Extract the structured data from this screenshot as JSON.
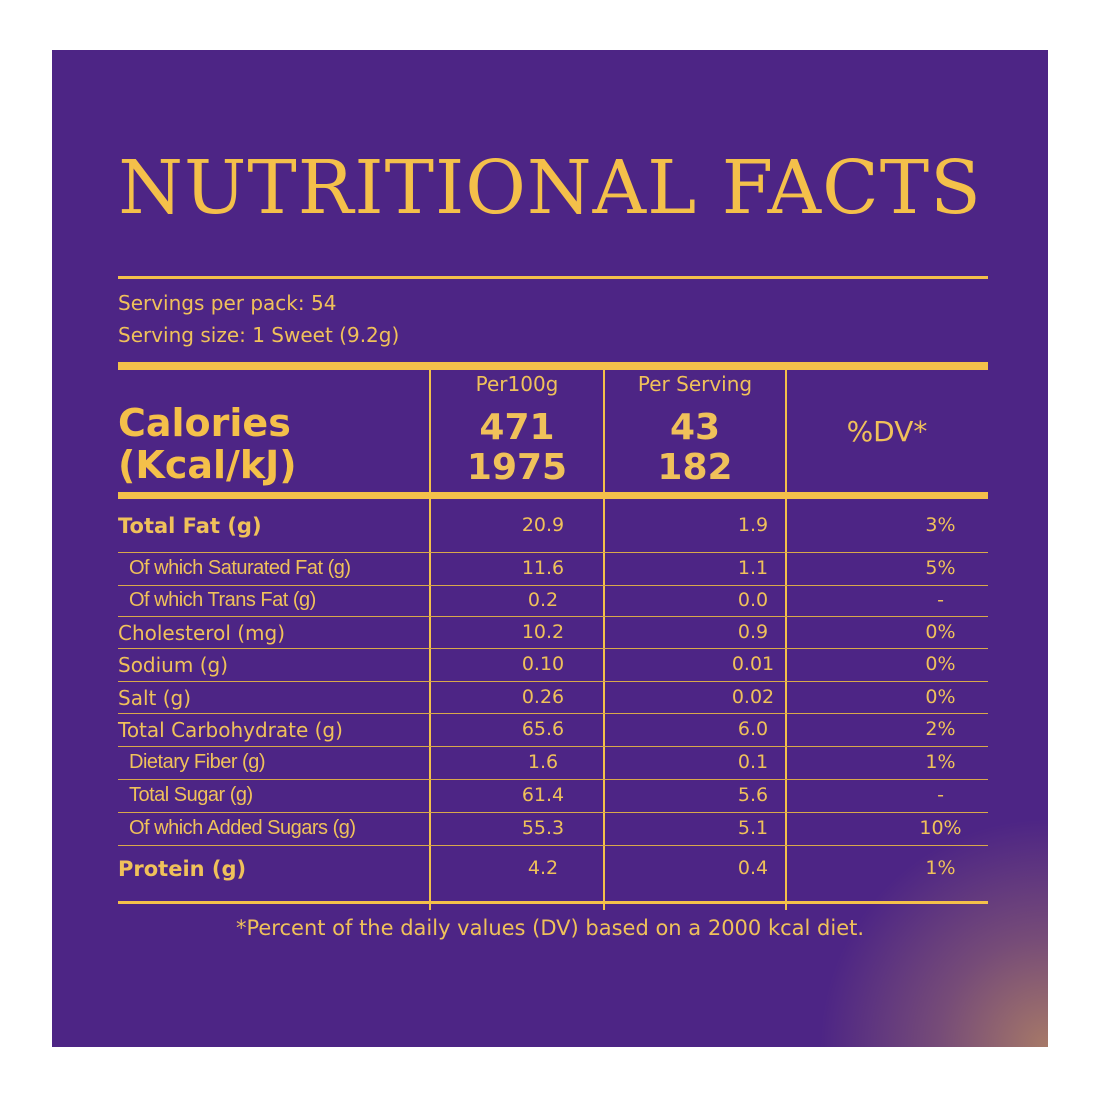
{
  "title": "NUTRITIONAL FACTS",
  "servings_per_pack": "Servings per pack: 54",
  "serving_size": "Serving size: 1 Sweet (9.2g)",
  "columns": {
    "per100g": "Per100g",
    "per_serving": "Per Serving",
    "dv": "%DV*"
  },
  "calories": {
    "label_line1": "Calories",
    "label_line2": "(Kcal/kJ)",
    "per100g_kcal": "471",
    "per100g_kj": "1975",
    "per_serving_kcal": "43",
    "per_serving_kj": "182"
  },
  "rows": [
    {
      "label": "Total Fat (g)",
      "per100g": "20.9",
      "per_serving": "1.9",
      "dv": "3%"
    },
    {
      "label": "Of which Saturated Fat (g)",
      "per100g": "11.6",
      "per_serving": "1.1",
      "dv": "5%"
    },
    {
      "label": "Of which Trans Fat (g)",
      "per100g": "0.2",
      "per_serving": "0.0",
      "dv": "-"
    },
    {
      "label": "Cholesterol (mg)",
      "per100g": "10.2",
      "per_serving": "0.9",
      "dv": "0%"
    },
    {
      "label": "Sodium (g)",
      "per100g": "0.10",
      "per_serving": "0.01",
      "dv": "0%"
    },
    {
      "label": "Salt (g)",
      "per100g": "0.26",
      "per_serving": "0.02",
      "dv": "0%"
    },
    {
      "label": "Total Carbohydrate (g)",
      "per100g": "65.6",
      "per_serving": "6.0",
      "dv": "2%"
    },
    {
      "label": "Dietary Fiber (g)",
      "per100g": "1.6",
      "per_serving": "0.1",
      "dv": "1%"
    },
    {
      "label": "Total Sugar (g)",
      "per100g": "61.4",
      "per_serving": "5.6",
      "dv": "-"
    },
    {
      "label": "Of which Added Sugars (g)",
      "per100g": "55.3",
      "per_serving": "5.1",
      "dv": "10%"
    },
    {
      "label": "Protein (g)",
      "per100g": "4.2",
      "per_serving": "0.4",
      "dv": "1%"
    }
  ],
  "footnote": "*Percent of the daily values (DV) based on a 2000 kcal diet.",
  "colors": {
    "background": "#4d2585",
    "accent": "#f4c04a"
  }
}
